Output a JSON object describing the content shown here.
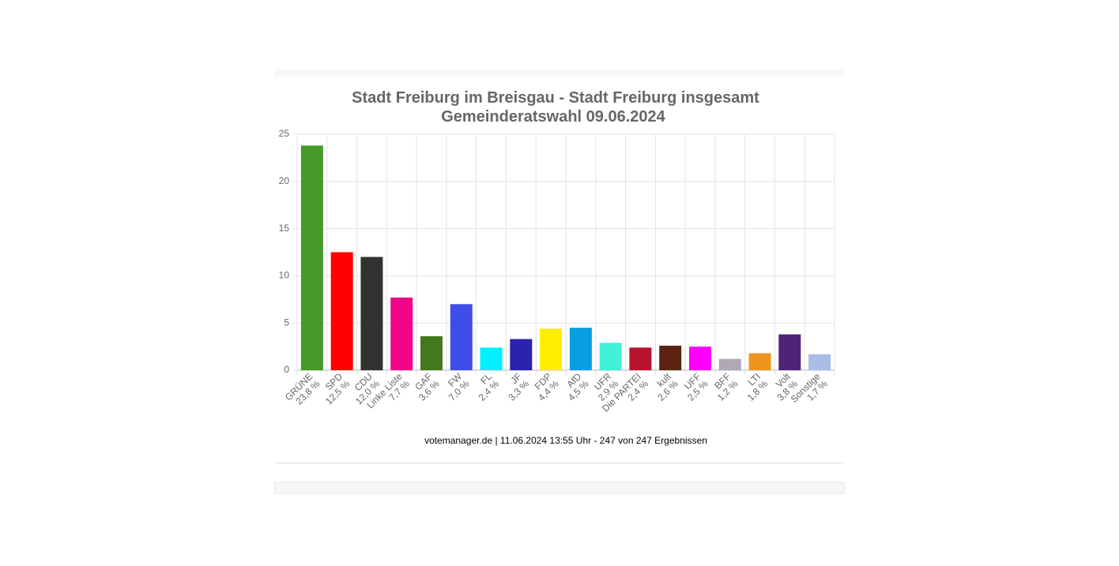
{
  "chart_data": {
    "type": "bar",
    "title": "Stadt Freiburg im Breisgau - Stadt Freiburg insgesamt",
    "subtitle": "Gemeinderatswahl 09.06.2024",
    "source": "votemanager.de | 11.06.2024 13:55 Uhr - 247 von 247 Ergebnissen",
    "categories": [
      "GRÜNE",
      "SPD",
      "CDU",
      "Linke Liste",
      "GAF",
      "FW",
      "FL",
      "JF",
      "FDP",
      "AfD",
      "UFR",
      "Die PARTEI",
      "kult",
      "UFF",
      "BFF",
      "LTI",
      "Volt",
      "Sonstige"
    ],
    "values": [
      23.8,
      12.5,
      12.0,
      7.7,
      3.6,
      7.0,
      2.4,
      3.3,
      4.4,
      4.5,
      2.9,
      2.4,
      2.6,
      2.5,
      1.2,
      1.8,
      3.8,
      1.7
    ],
    "value_labels": [
      "23,8 %",
      "12,5 %",
      "12,0 %",
      "7,7 %",
      "3,6 %",
      "7,0 %",
      "2,4 %",
      "3,3 %",
      "4,4 %",
      "4,5 %",
      "2,9 %",
      "2,4 %",
      "2,6 %",
      "2,5 %",
      "1,2 %",
      "1,8 %",
      "3,8 %",
      "1,7 %"
    ],
    "colors": [
      "#459a2a",
      "#ff0000",
      "#323232",
      "#f0058a",
      "#44781d",
      "#3f4de8",
      "#00f0ff",
      "#2a22aa",
      "#ffee00",
      "#0a9de0",
      "#40f0d8",
      "#b8122e",
      "#5a2210",
      "#ff00ff",
      "#b0a8b4",
      "#f0941e",
      "#502379",
      "#a9bde6"
    ],
    "ylim": [
      0,
      25
    ],
    "yticks": [
      0,
      5,
      10,
      15,
      20,
      25
    ],
    "grid": true
  }
}
